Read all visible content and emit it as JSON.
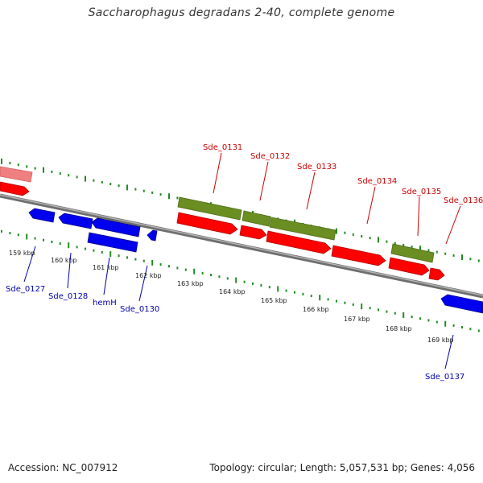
{
  "title": "Saccharophagus degradans 2-40, complete genome",
  "footer": {
    "accession": "Accession: NC_007912",
    "summary": "Topology: circular; Length: 5,057,531 bp; Genes: 4,056"
  },
  "colors": {
    "backbone": "#8c8c8c",
    "forward_cds": "#ff0000",
    "reverse_cds": "#0000ee",
    "gene_olive": "#6b8e23",
    "faded_cds": "#f08080",
    "tick_green": "#228b22",
    "label_red": "#cc0000",
    "label_blue": "#0000aa"
  },
  "kbp_labels": [
    "159 kbp",
    "160 kbp",
    "161 kbp",
    "162 kbp",
    "163 kbp",
    "164 kbp",
    "165 kbp",
    "166 kbp",
    "167 kbp",
    "168 kbp",
    "169 kbp"
  ],
  "top_genes": [
    "Sde_0131",
    "Sde_0132",
    "Sde_0133",
    "Sde_0134",
    "Sde_0135",
    "Sde_0136"
  ],
  "bottom_genes": [
    "Sde_0127",
    "Sde_0128",
    "hemH",
    "Sde_0130",
    "Sde_0137"
  ]
}
